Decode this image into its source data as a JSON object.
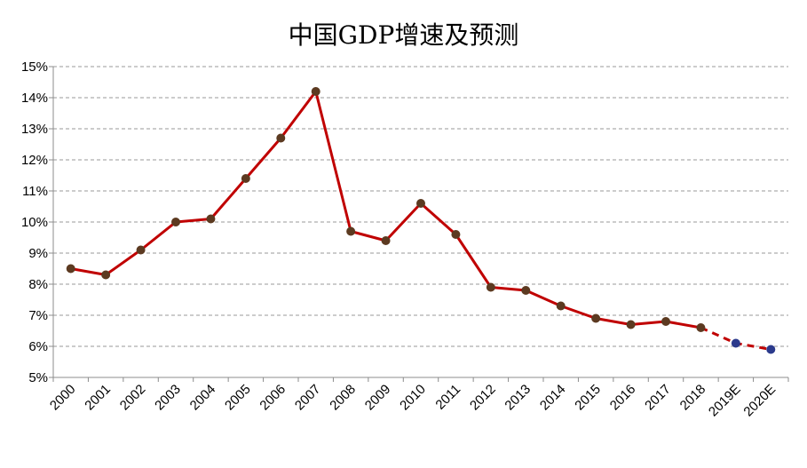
{
  "chart_data": {
    "type": "line",
    "title": "中国GDP增速及预测",
    "xlabel": "",
    "ylabel": "",
    "categories": [
      "2000",
      "2001",
      "2002",
      "2003",
      "2004",
      "2005",
      "2006",
      "2007",
      "2008",
      "2009",
      "2010",
      "2011",
      "2012",
      "2013",
      "2014",
      "2015",
      "2016",
      "2017",
      "2018",
      "2019E",
      "2020E"
    ],
    "series": [
      {
        "values": [
          8.5,
          8.3,
          9.1,
          10.0,
          10.1,
          11.4,
          12.7,
          14.2,
          9.7,
          9.4,
          10.6,
          9.6,
          7.9,
          7.8,
          7.3,
          6.9,
          6.7,
          6.8,
          6.6,
          6.1,
          5.9
        ],
        "actual_through": "2018",
        "forecast_from": "2019E"
      }
    ],
    "ylim": [
      5,
      15
    ],
    "ytick_step": 1,
    "ytick_format": "%",
    "grid": true,
    "grid_style": "dashed",
    "legend": "none",
    "colors": {
      "line": "#c00000",
      "marker_actual": "#5c3a21",
      "marker_forecast": "#2b3a8c"
    }
  }
}
